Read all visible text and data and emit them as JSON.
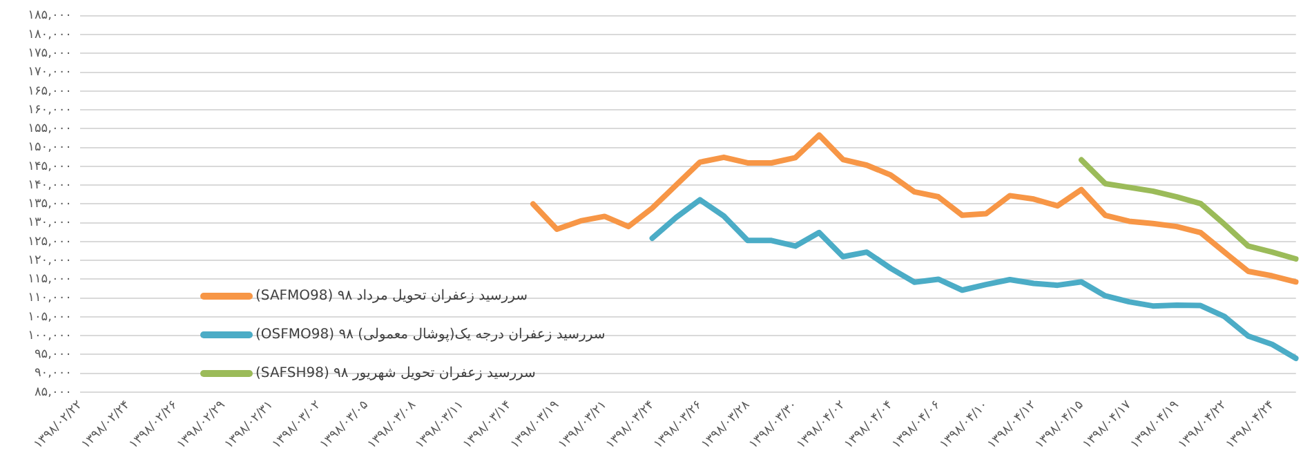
{
  "chart_data": {
    "type": "line",
    "categories": [
      "۱۳۹۸/۰۲/۲۲",
      null,
      "۱۳۹۸/۰۲/۲۴",
      null,
      "۱۳۹۸/۰۲/۲۶",
      null,
      "۱۳۹۸/۰۲/۲۹",
      null,
      "۱۳۹۸/۰۲/۳۱",
      null,
      "۱۳۹۸/۰۳/۰۲",
      null,
      "۱۳۹۸/۰۳/۰۵",
      null,
      "۱۳۹۸/۰۳/۰۸",
      null,
      "۱۳۹۸/۰۳/۱۱",
      null,
      "۱۳۹۸/۰۳/۱۴",
      null,
      "۱۳۹۸/۰۳/۱۹",
      null,
      "۱۳۹۸/۰۳/۲۱",
      null,
      "۱۳۹۸/۰۳/۲۴",
      null,
      "۱۳۹۸/۰۳/۲۶",
      null,
      "۱۳۹۸/۰۳/۲۸",
      null,
      "۱۳۹۸/۰۳/۳۰",
      null,
      "۱۳۹۸/۰۴/۰۲",
      null,
      "۱۳۹۸/۰۴/۰۴",
      null,
      "۱۳۹۸/۰۴/۰۶",
      null,
      "۱۳۹۸/۰۴/۱۰",
      null,
      "۱۳۹۸/۰۴/۱۲",
      null,
      "۱۳۹۸/۰۴/۱۵",
      null,
      "۱۳۹۸/۰۴/۱۷",
      null,
      "۱۳۹۸/۰۴/۱۹",
      null,
      "۱۳۹۸/۰۴/۲۲",
      null,
      "۱۳۹۸/۰۴/۲۴",
      null
    ],
    "series": [
      {
        "name": "سررسید زعفران تحویل مرداد ۹۸ (SAFMO98)",
        "color": "#f79646",
        "values": [
          null,
          null,
          null,
          null,
          null,
          null,
          null,
          null,
          null,
          null,
          null,
          null,
          null,
          null,
          null,
          null,
          null,
          null,
          null,
          135000,
          128300,
          130500,
          131700,
          129000,
          133900,
          140000,
          146100,
          147400,
          145900,
          145900,
          147300,
          153300,
          146800,
          145300,
          142700,
          138200,
          136900,
          132000,
          132400,
          137200,
          136300,
          134500,
          138800,
          132000,
          130400,
          129800,
          129000,
          127400,
          122200,
          117100,
          115900,
          114300
        ]
      },
      {
        "name": "سررسید زعفران درجه یک(پوشال معمولی) ۹۸ (OSFMO98)",
        "color": "#4bacc6",
        "values": [
          null,
          null,
          null,
          null,
          null,
          null,
          null,
          null,
          null,
          null,
          null,
          null,
          null,
          null,
          null,
          null,
          null,
          null,
          null,
          null,
          null,
          null,
          null,
          null,
          125900,
          131400,
          136100,
          131800,
          125300,
          125300,
          123800,
          127400,
          121000,
          122200,
          117900,
          114200,
          115000,
          112100,
          113600,
          114900,
          113900,
          113400,
          114300,
          110600,
          109000,
          107900,
          108100,
          108000,
          105100,
          99900,
          97700,
          94000
        ]
      },
      {
        "name": "سررسید زعفران تحویل شهریور ۹۸ (SAFSH98)",
        "color": "#9bbb59",
        "values": [
          null,
          null,
          null,
          null,
          null,
          null,
          null,
          null,
          null,
          null,
          null,
          null,
          null,
          null,
          null,
          null,
          null,
          null,
          null,
          null,
          null,
          null,
          null,
          null,
          null,
          null,
          null,
          null,
          null,
          null,
          null,
          null,
          null,
          null,
          null,
          null,
          null,
          null,
          null,
          null,
          null,
          null,
          146700,
          140400,
          139400,
          138400,
          136900,
          135100,
          129600,
          123800,
          122200,
          120400
        ]
      }
    ],
    "ylim": [
      85000,
      185000
    ],
    "yticks": [
      {
        "value": 85000,
        "label": "۸۵,۰۰۰"
      },
      {
        "value": 90000,
        "label": "۹۰,۰۰۰"
      },
      {
        "value": 95000,
        "label": "۹۵,۰۰۰"
      },
      {
        "value": 100000,
        "label": "۱۰۰,۰۰۰"
      },
      {
        "value": 105000,
        "label": "۱۰۵,۰۰۰"
      },
      {
        "value": 110000,
        "label": "۱۱۰,۰۰۰"
      },
      {
        "value": 115000,
        "label": "۱۱۵,۰۰۰"
      },
      {
        "value": 120000,
        "label": "۱۲۰,۰۰۰"
      },
      {
        "value": 125000,
        "label": "۱۲۵,۰۰۰"
      },
      {
        "value": 130000,
        "label": "۱۳۰,۰۰۰"
      },
      {
        "value": 135000,
        "label": "۱۳۵,۰۰۰"
      },
      {
        "value": 140000,
        "label": "۱۴۰,۰۰۰"
      },
      {
        "value": 145000,
        "label": "۱۴۵,۰۰۰"
      },
      {
        "value": 150000,
        "label": "۱۵۰,۰۰۰"
      },
      {
        "value": 155000,
        "label": "۱۵۵,۰۰۰"
      },
      {
        "value": 160000,
        "label": "۱۶۰,۰۰۰"
      },
      {
        "value": 165000,
        "label": "۱۶۵,۰۰۰"
      },
      {
        "value": 170000,
        "label": "۱۷۰,۰۰۰"
      },
      {
        "value": 175000,
        "label": "۱۷۵,۰۰۰"
      },
      {
        "value": 180000,
        "label": "۱۸۰,۰۰۰"
      },
      {
        "value": 185000,
        "label": "۱۸۵,۰۰۰"
      }
    ],
    "grid": "y",
    "legend": "bottom left",
    "marker": "none",
    "line_style": "solid"
  }
}
